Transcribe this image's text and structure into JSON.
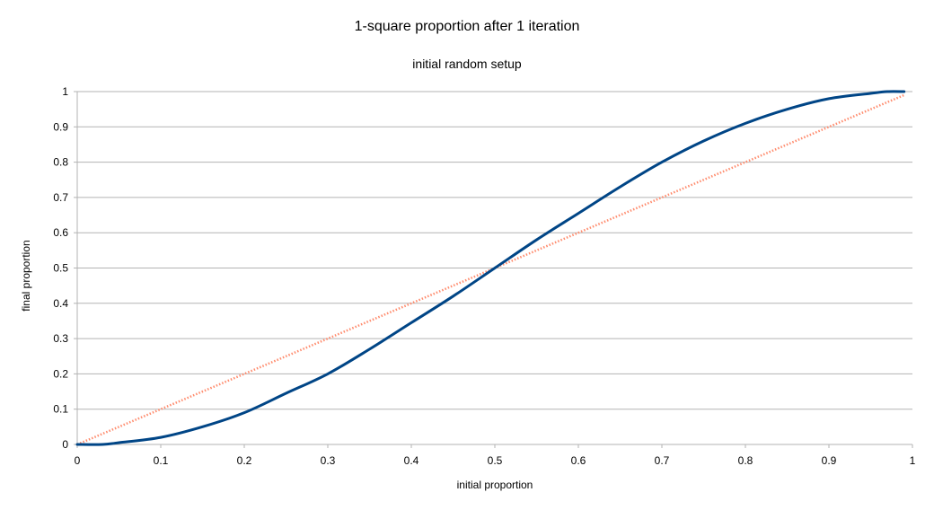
{
  "chart_data": {
    "type": "line",
    "title": "1-square proportion after 1 iteration",
    "subtitle": "initial random setup",
    "xlabel": "initial proportion",
    "ylabel": "final proportion",
    "xlim": [
      0,
      1
    ],
    "ylim": [
      0,
      1
    ],
    "x_ticks": [
      "0",
      "0.1",
      "0.2",
      "0.3",
      "0.4",
      "0.5",
      "0.6",
      "0.7",
      "0.8",
      "0.9",
      "1"
    ],
    "y_ticks": [
      "0",
      "0.1",
      "0.2",
      "0.3",
      "0.4",
      "0.5",
      "0.6",
      "0.7",
      "0.8",
      "0.9",
      "1"
    ],
    "grid": "horizontal",
    "legend": "none",
    "series": [
      {
        "style": "solid",
        "color": "#004586",
        "x": [
          0,
          0.03,
          0.05,
          0.1,
          0.15,
          0.2,
          0.25,
          0.3,
          0.35,
          0.4,
          0.45,
          0.5,
          0.55,
          0.6,
          0.65,
          0.7,
          0.75,
          0.8,
          0.85,
          0.9,
          0.95,
          0.97,
          0.99
        ],
        "y": [
          0,
          0,
          0.005,
          0.02,
          0.05,
          0.09,
          0.145,
          0.2,
          0.27,
          0.345,
          0.42,
          0.5,
          0.58,
          0.655,
          0.73,
          0.8,
          0.86,
          0.91,
          0.95,
          0.98,
          0.995,
          1,
          1
        ]
      },
      {
        "style": "dotted",
        "color": "#ff8c6e",
        "x": [
          0,
          0.99
        ],
        "y": [
          0,
          0.99
        ]
      }
    ]
  }
}
